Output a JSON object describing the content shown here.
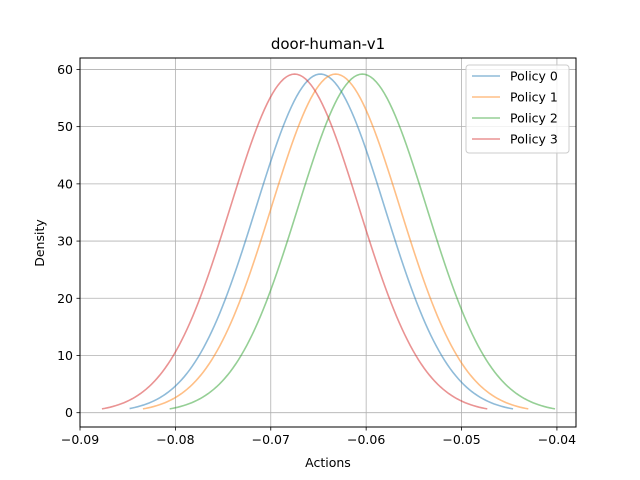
{
  "chart_data": {
    "type": "line",
    "title": "door-human-v1",
    "xlabel": "Actions",
    "ylabel": "Density",
    "xlim": [
      -0.09,
      -0.038
    ],
    "ylim": [
      -2.5,
      62
    ],
    "xticks": [
      -0.09,
      -0.08,
      -0.07,
      -0.06,
      -0.05,
      -0.04
    ],
    "xtick_labels": [
      "−0.09",
      "−0.08",
      "−0.07",
      "−0.06",
      "−0.05",
      "−0.04"
    ],
    "yticks": [
      0,
      10,
      20,
      30,
      40,
      50,
      60
    ],
    "ytick_labels": [
      "0",
      "10",
      "20",
      "30",
      "40",
      "50",
      "60"
    ],
    "grid": true,
    "legend_position": "top-right",
    "series": [
      {
        "name": "Policy 0",
        "color": "#1f77b4",
        "mean": -0.0648,
        "std": 0.00674,
        "x_range": [
          -0.0848,
          -0.0446
        ]
      },
      {
        "name": "Policy 1",
        "color": "#ff7f0e",
        "mean": -0.0632,
        "std": 0.00674,
        "x_range": [
          -0.0834,
          -0.043
        ]
      },
      {
        "name": "Policy 2",
        "color": "#2ca02c",
        "mean": -0.0604,
        "std": 0.00674,
        "x_range": [
          -0.0806,
          -0.0402
        ]
      },
      {
        "name": "Policy 3",
        "color": "#d62728",
        "mean": -0.0675,
        "std": 0.00674,
        "x_range": [
          -0.0877,
          -0.0473
        ]
      }
    ]
  }
}
